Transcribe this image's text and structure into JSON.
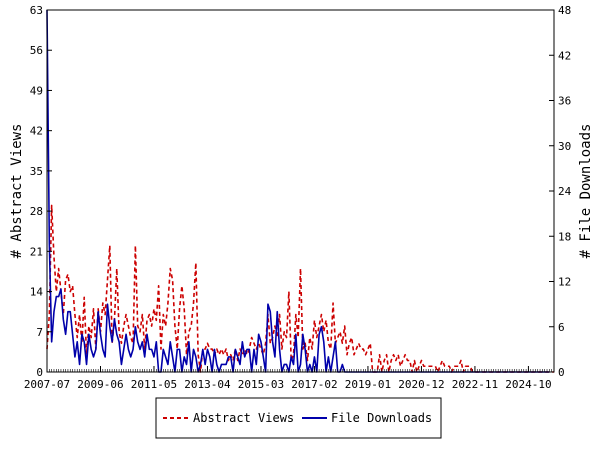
{
  "chart_data": {
    "type": "line",
    "title": "",
    "xlabel": "",
    "ylabel": "# Abstract Views",
    "y2label": "# File Downloads",
    "ylim": [
      0,
      63
    ],
    "y2lim": [
      0,
      48
    ],
    "yticks": [
      "0",
      "7",
      "14",
      "21",
      "28",
      "35",
      "42",
      "49",
      "56",
      "63"
    ],
    "y2ticks": [
      "0",
      "6",
      "12",
      "18",
      "24",
      "30",
      "36",
      "42",
      "48"
    ],
    "xticks": [
      "2007-07",
      "2009-06",
      "2011-05",
      "2013-04",
      "2015-03",
      "2017-02",
      "2019-01",
      "2020-12",
      "2022-11",
      "2024-10"
    ],
    "x_start": "2007-07",
    "x_end": "2025-09",
    "grid": false,
    "legend_position": "bottom",
    "series": [
      {
        "name": "Abstract Views",
        "axis": "left",
        "color": "#cc0000",
        "style": "dashed",
        "values": [
          4,
          10,
          29,
          20,
          14,
          18,
          14,
          10,
          16,
          17,
          14,
          15,
          10,
          6,
          10,
          5,
          13,
          3,
          8,
          6,
          11,
          4,
          11,
          7,
          12,
          10,
          16,
          22,
          5,
          9,
          18,
          7,
          5,
          8,
          10,
          8,
          6,
          5,
          22,
          8,
          7,
          10,
          4,
          9,
          10,
          8,
          11,
          9,
          15,
          4,
          10,
          8,
          12,
          18,
          16,
          8,
          4,
          11,
          15,
          11,
          3,
          7,
          8,
          12,
          19,
          3,
          0,
          4,
          4,
          5,
          4,
          4,
          3,
          4,
          3,
          4,
          3,
          4,
          2,
          3,
          2,
          4,
          2,
          4,
          3,
          4,
          3,
          4,
          6,
          5,
          4,
          5,
          4,
          3,
          5,
          10,
          5,
          6,
          8,
          6,
          10,
          4,
          7,
          6,
          14,
          2,
          3,
          10,
          6,
          18,
          4,
          5,
          2,
          6,
          4,
          9,
          6,
          8,
          10,
          7,
          9,
          5,
          4,
          12,
          5,
          6,
          7,
          5,
          8,
          3,
          5,
          6,
          3,
          4,
          5,
          4,
          4,
          3,
          4,
          5,
          0,
          0,
          0,
          3,
          0,
          2,
          3,
          0,
          2,
          3,
          2,
          3,
          1,
          2,
          3,
          2,
          2,
          0,
          2,
          0,
          1,
          2,
          1,
          1,
          1,
          1,
          1,
          1,
          0,
          1,
          2,
          1,
          1,
          1,
          0,
          1,
          1,
          1,
          2,
          0,
          1,
          1,
          1,
          0,
          0,
          0,
          0,
          0,
          0,
          0,
          0,
          0,
          0,
          0,
          0,
          0,
          0,
          0,
          0,
          0,
          0,
          0,
          0,
          0,
          0,
          0,
          0,
          0,
          0,
          0,
          0,
          0,
          0,
          0,
          0,
          0,
          0,
          0,
          0
        ]
      },
      {
        "name": "File Downloads",
        "axis": "right",
        "color": "#0000aa",
        "style": "solid",
        "values": [
          48,
          17,
          4,
          8,
          10,
          10,
          11,
          7,
          5,
          8,
          8,
          5,
          2,
          4,
          1,
          5,
          4,
          1,
          5,
          3,
          2,
          3,
          8,
          5,
          3,
          2,
          9,
          6,
          4,
          7,
          5,
          4,
          1,
          3,
          5,
          3,
          2,
          3,
          6,
          4,
          3,
          4,
          2,
          5,
          3,
          3,
          2,
          4,
          0,
          0,
          3,
          2,
          1,
          4,
          2,
          0,
          3,
          3,
          0,
          2,
          1,
          4,
          0,
          3,
          2,
          0,
          1,
          3,
          1,
          3,
          2,
          0,
          3,
          1,
          0,
          1,
          1,
          1,
          2,
          2,
          0,
          3,
          2,
          1,
          4,
          2,
          3,
          3,
          0,
          3,
          1,
          5,
          4,
          2,
          0,
          9,
          8,
          4,
          2,
          8,
          3,
          0,
          1,
          1,
          0,
          2,
          1,
          5,
          0,
          1,
          5,
          3,
          0,
          1,
          0,
          2,
          0,
          5,
          6,
          4,
          0,
          2,
          0,
          2,
          4,
          0,
          0,
          1,
          0,
          0,
          0,
          0,
          0,
          0,
          0,
          0,
          0,
          0,
          0,
          0,
          0,
          0,
          0,
          0,
          0,
          0,
          0,
          0,
          0,
          0,
          0,
          0,
          0,
          0,
          0,
          0,
          0,
          0,
          0,
          0,
          0,
          0,
          0,
          0,
          0,
          0,
          0,
          0,
          0,
          0,
          0,
          0,
          0,
          0,
          0,
          0,
          0,
          0,
          0,
          0,
          0,
          0,
          0,
          0,
          0,
          0,
          0,
          0,
          0,
          0,
          0,
          0,
          0,
          0,
          0,
          0,
          0,
          0,
          0,
          0,
          0,
          0,
          0,
          0,
          0,
          0,
          0,
          0,
          0,
          0,
          0,
          0,
          0,
          0,
          0,
          0,
          0
        ]
      }
    ]
  }
}
